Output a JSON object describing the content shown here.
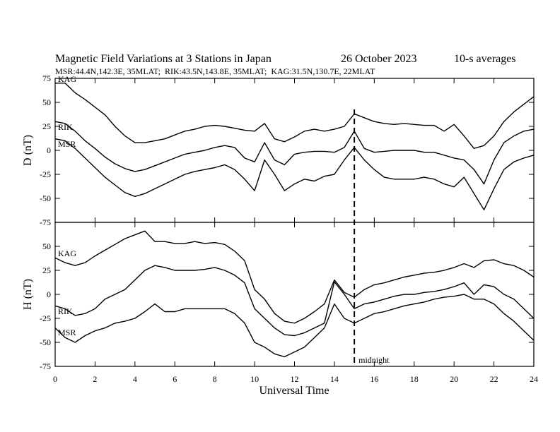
{
  "header": {
    "title": "Magnetic Field Variations at 3 Stations in Japan",
    "date": "26 October 2023",
    "averaging": "10-s averages",
    "stations_line": "MSR:44.4N,142.3E, 35MLAT;  RIK:43.5N,143.8E, 35MLAT;  KAG:31.5N,130.7E, 22MLAT"
  },
  "chart_data": {
    "type": "line",
    "xlabel": "Universal Time",
    "xlim": [
      0,
      24
    ],
    "x_ticks": [
      0,
      2,
      4,
      6,
      8,
      10,
      12,
      14,
      16,
      18,
      20,
      22,
      24
    ],
    "marker": {
      "x": 15,
      "label": "midnight",
      "style": "dashed"
    },
    "panels": [
      {
        "id": "D",
        "ylabel": "D (nT)",
        "ylim": [
          -75,
          75
        ],
        "y_ticks": [
          75,
          50,
          25,
          0,
          -25,
          -50,
          -75
        ],
        "series": [
          {
            "name": "KAG",
            "x": [
              0,
              0.5,
              1,
              1.5,
              2,
              2.5,
              3,
              3.5,
              4,
              4.5,
              5,
              5.5,
              6,
              6.5,
              7,
              7.5,
              8,
              8.5,
              9,
              9.5,
              10,
              10.5,
              11,
              11.5,
              12,
              12.5,
              13,
              13.5,
              14,
              14.5,
              15,
              15.5,
              16,
              16.5,
              17,
              17.5,
              18,
              18.5,
              19,
              19.5,
              20,
              20.5,
              21,
              21.5,
              22,
              22.5,
              23,
              23.5,
              24
            ],
            "values": [
              70,
              70,
              60,
              53,
              45,
              37,
              25,
              15,
              8,
              8,
              10,
              12,
              16,
              20,
              22,
              25,
              26,
              25,
              23,
              21,
              20,
              28,
              12,
              9,
              14,
              20,
              22,
              20,
              22,
              25,
              38,
              34,
              30,
              28,
              27,
              28,
              27,
              26,
              26,
              20,
              27,
              15,
              2,
              5,
              15,
              30,
              40,
              48,
              56
            ]
          },
          {
            "name": "RIK",
            "x": [
              0,
              0.5,
              1,
              1.5,
              2,
              2.5,
              3,
              3.5,
              4,
              4.5,
              5,
              5.5,
              6,
              6.5,
              7,
              7.5,
              8,
              8.5,
              9,
              9.5,
              10,
              10.5,
              11,
              11.5,
              12,
              12.5,
              13,
              13.5,
              14,
              14.5,
              15,
              15.5,
              16,
              16.5,
              17,
              17.5,
              18,
              18.5,
              19,
              19.5,
              20,
              20.5,
              21,
              21.5,
              22,
              22.5,
              23,
              23.5,
              24
            ],
            "values": [
              30,
              28,
              20,
              10,
              2,
              -7,
              -14,
              -19,
              -22,
              -20,
              -16,
              -12,
              -8,
              -4,
              -2,
              0,
              3,
              5,
              3,
              -8,
              -12,
              8,
              -10,
              -15,
              -4,
              -2,
              -1,
              -1,
              -2,
              3,
              20,
              2,
              -2,
              -1,
              0,
              0,
              0,
              -2,
              -2,
              -5,
              -8,
              -10,
              -20,
              -35,
              -10,
              8,
              15,
              20,
              22
            ]
          },
          {
            "name": "MSR",
            "x": [
              0,
              0.5,
              1,
              1.5,
              2,
              2.5,
              3,
              3.5,
              4,
              4.5,
              5,
              5.5,
              6,
              6.5,
              7,
              7.5,
              8,
              8.5,
              9,
              9.5,
              10,
              10.5,
              11,
              11.5,
              12,
              12.5,
              13,
              13.5,
              14,
              14.5,
              15,
              15.5,
              16,
              16.5,
              17,
              17.5,
              18,
              18.5,
              19,
              19.5,
              20,
              20.5,
              21,
              21.5,
              22,
              22.5,
              23,
              23.5,
              24
            ],
            "values": [
              12,
              10,
              2,
              -8,
              -18,
              -28,
              -36,
              -44,
              -48,
              -45,
              -40,
              -35,
              -30,
              -25,
              -22,
              -20,
              -18,
              -15,
              -20,
              -30,
              -42,
              -10,
              -25,
              -42,
              -35,
              -30,
              -32,
              -27,
              -25,
              -10,
              3,
              -10,
              -20,
              -28,
              -30,
              -30,
              -30,
              -28,
              -30,
              -35,
              -38,
              -28,
              -45,
              -62,
              -40,
              -20,
              -12,
              -8,
              -5
            ]
          }
        ]
      },
      {
        "id": "H",
        "ylabel": "H (nT)",
        "ylim": [
          -75,
          75
        ],
        "y_ticks": [
          50,
          25,
          0,
          -25,
          -50,
          -75
        ],
        "series": [
          {
            "name": "KAG",
            "x": [
              0,
              0.5,
              1,
              1.5,
              2,
              2.5,
              3,
              3.5,
              4,
              4.5,
              5,
              5.5,
              6,
              6.5,
              7,
              7.5,
              8,
              8.5,
              9,
              9.5,
              10,
              10.5,
              11,
              11.5,
              12,
              12.5,
              13,
              13.5,
              14,
              14.5,
              15,
              15.5,
              16,
              16.5,
              17,
              17.5,
              18,
              18.5,
              19,
              19.5,
              20,
              20.5,
              21,
              21.5,
              22,
              22.5,
              23,
              23.5,
              24
            ],
            "values": [
              38,
              33,
              30,
              33,
              40,
              46,
              52,
              58,
              62,
              66,
              55,
              55,
              53,
              53,
              55,
              53,
              54,
              52,
              45,
              35,
              5,
              -5,
              -20,
              -28,
              -30,
              -25,
              -18,
              -10,
              15,
              2,
              -3,
              5,
              10,
              12,
              15,
              18,
              20,
              22,
              23,
              25,
              28,
              32,
              28,
              35,
              36,
              32,
              30,
              25,
              18
            ]
          },
          {
            "name": "RIK",
            "x": [
              0,
              0.5,
              1,
              1.5,
              2,
              2.5,
              3,
              3.5,
              4,
              4.5,
              5,
              5.5,
              6,
              6.5,
              7,
              7.5,
              8,
              8.5,
              9,
              9.5,
              10,
              10.5,
              11,
              11.5,
              12,
              12.5,
              13,
              13.5,
              14,
              14.5,
              15,
              15.5,
              16,
              16.5,
              17,
              17.5,
              18,
              18.5,
              19,
              19.5,
              20,
              20.5,
              21,
              21.5,
              22,
              22.5,
              23,
              23.5,
              24
            ],
            "values": [
              -12,
              -15,
              -22,
              -20,
              -15,
              -5,
              0,
              5,
              15,
              25,
              30,
              28,
              25,
              25,
              25,
              26,
              28,
              25,
              20,
              12,
              -15,
              -25,
              -35,
              -42,
              -43,
              -40,
              -35,
              -30,
              13,
              0,
              -15,
              -10,
              -8,
              -5,
              -2,
              0,
              0,
              2,
              3,
              5,
              8,
              12,
              0,
              10,
              8,
              0,
              -5,
              -15,
              -25
            ]
          },
          {
            "name": "MSR",
            "x": [
              0,
              0.5,
              1,
              1.5,
              2,
              2.5,
              3,
              3.5,
              4,
              4.5,
              5,
              5.5,
              6,
              6.5,
              7,
              7.5,
              8,
              8.5,
              9,
              9.5,
              10,
              10.5,
              11,
              11.5,
              12,
              12.5,
              13,
              13.5,
              14,
              14.5,
              15,
              15.5,
              16,
              16.5,
              17,
              17.5,
              18,
              18.5,
              19,
              19.5,
              20,
              20.5,
              21,
              21.5,
              22,
              22.5,
              23,
              23.5,
              24
            ],
            "values": [
              -35,
              -45,
              -50,
              -43,
              -38,
              -35,
              -30,
              -28,
              -25,
              -18,
              -10,
              -18,
              -18,
              -15,
              -15,
              -15,
              -15,
              -15,
              -20,
              -30,
              -50,
              -55,
              -62,
              -65,
              -60,
              -55,
              -45,
              -35,
              -10,
              -25,
              -30,
              -25,
              -20,
              -18,
              -15,
              -12,
              -10,
              -8,
              -5,
              -3,
              -2,
              0,
              -5,
              -5,
              -10,
              -20,
              -28,
              -38,
              -48
            ]
          }
        ]
      }
    ]
  }
}
